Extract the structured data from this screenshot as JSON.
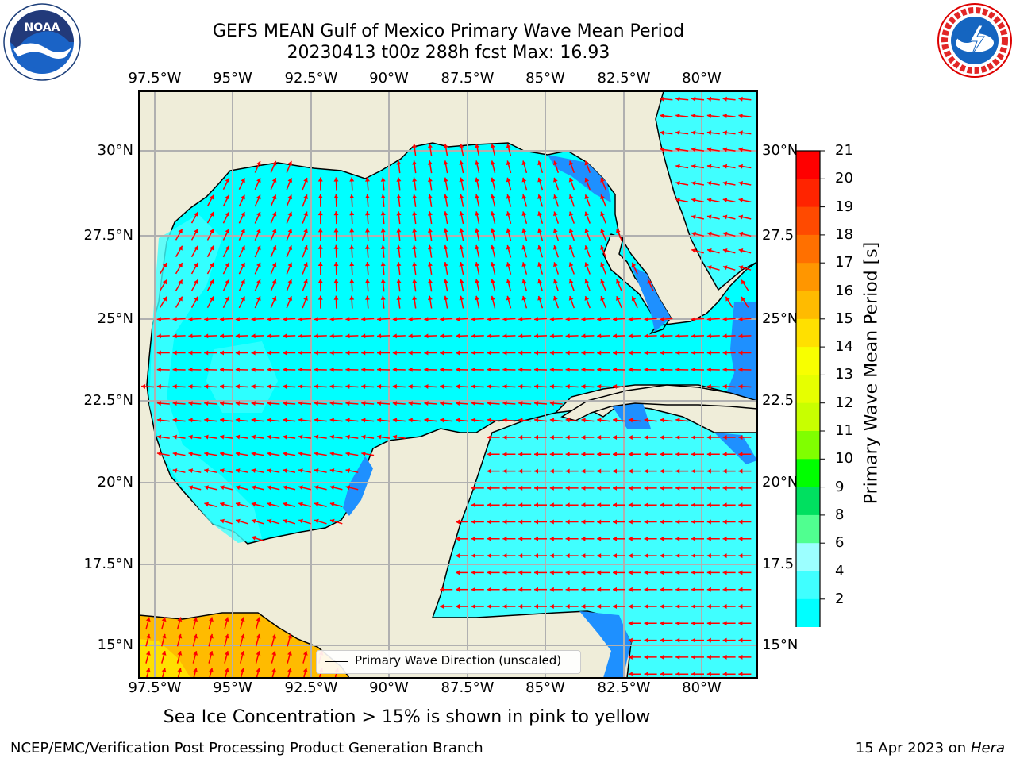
{
  "title": {
    "line1": "GEFS MEAN Gulf of Mexico Primary Wave Mean Period",
    "line2": "20230413 t00z 288h fcst   Max: 16.93"
  },
  "map": {
    "lon_labels": [
      "97.5°W",
      "95°W",
      "92.5°W",
      "90°W",
      "87.5°W",
      "85°W",
      "82.5°W",
      "80°W"
    ],
    "lat_labels_left": [
      "30°N",
      "27.5°N",
      "25°N",
      "22.5°N",
      "20°N",
      "17.5°N",
      "15°N"
    ],
    "lat_labels_right": [
      "30°N",
      "27.5",
      "25°N",
      "22.5",
      "20°N",
      "17.5",
      "15°N"
    ],
    "legend_label": "Primary Wave Direction (unscaled)",
    "colors": {
      "land": "#efedd9",
      "water_2_4": "#1e90ff",
      "water_4_6": "#00ffff",
      "water_6_8": "#40ffff",
      "arrows": "#ff0000",
      "grid": "#b0b0b0"
    },
    "logos": {
      "left": "noaa-logo",
      "right": "national-weather-service-logo"
    }
  },
  "colorbar": {
    "title": "Primary Wave Mean Period [s]",
    "tick_labels": [
      "21",
      "20",
      "19",
      "18",
      "17",
      "16",
      "15",
      "14",
      "13",
      "12",
      "11",
      "10",
      "9",
      "8",
      "6",
      "4",
      "2"
    ],
    "colors": [
      "#ff0000",
      "#ff2400",
      "#ff4a00",
      "#ff7000",
      "#ff9600",
      "#ffbb00",
      "#ffe000",
      "#f8ff00",
      "#e6ff00",
      "#c8ff00",
      "#80ff00",
      "#00ff00",
      "#00e060",
      "#50ff90",
      "#9cffff",
      "#40ffff",
      "#00ffff",
      "#1e90ff"
    ],
    "extend_color": "#0000ff"
  },
  "note": "Sea Ice Concentration > 15% is shown in pink to yellow",
  "footer": {
    "left": "NCEP/EMC/Verification Post Processing Product Generation Branch",
    "right_date": "15 Apr 2023 on",
    "right_host": "Hera"
  }
}
